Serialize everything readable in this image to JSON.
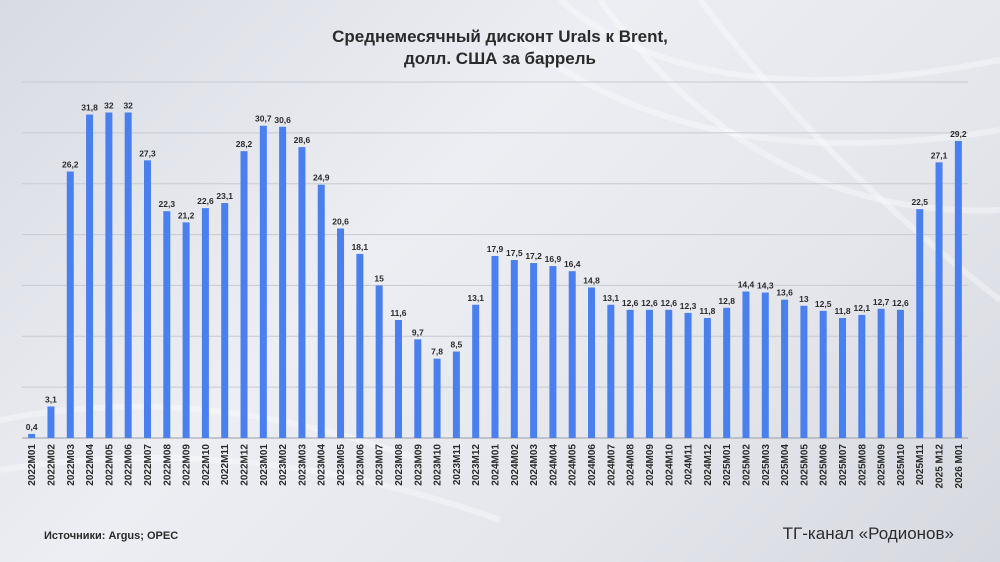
{
  "header": {
    "title_line1": "Среднемесячный дисконт Urals к Brent,",
    "title_line2": "долл. США за баррель"
  },
  "footer": {
    "source": "Источники: Argus; OPEC",
    "channel": "ТГ-канал «Родионов»"
  },
  "colors": {
    "bar": "#4a7ff0",
    "text": "#2b2b2b",
    "grid": "#c8cad2"
  },
  "chart_data": {
    "type": "bar",
    "title": "Среднемесячный дисконт Urals к Brent, долл. США за баррель",
    "xlabel": "",
    "ylabel": "",
    "ylim": [
      0,
      35
    ],
    "grid": true,
    "legend": "none",
    "categories": [
      "2022M01",
      "2022M02",
      "2022M03",
      "2022M04",
      "2022M05",
      "2022M06",
      "2022M07",
      "2022M08",
      "2022M09",
      "2022M10",
      "2022M11",
      "2022M12",
      "2023M01",
      "2023M02",
      "2023M03",
      "2023M04",
      "2023M05",
      "2023M06",
      "2023M07",
      "2023M08",
      "2023M09",
      "2023M10",
      "2023M11",
      "2023M12",
      "2024M01",
      "2024M02",
      "2024M03",
      "2024M04",
      "2024M05",
      "2024M06",
      "2024M07",
      "2024M08",
      "2024M09",
      "2024M10",
      "2024M11",
      "2024M12",
      "2025M01",
      "2025M02",
      "2025M03",
      "2025M04",
      "2025M05",
      "2025M06",
      "2025M07",
      "2025M08",
      "2025M09",
      "2025M10",
      "2025M11",
      "2025 M12",
      "2026 M01"
    ],
    "values": [
      0.4,
      3.1,
      26.2,
      31.8,
      32,
      32,
      27.3,
      22.3,
      21.2,
      22.6,
      23.1,
      28.2,
      30.7,
      30.6,
      28.6,
      24.9,
      20.6,
      18.1,
      15,
      11.6,
      9.7,
      7.8,
      8.5,
      13.1,
      17.9,
      17.5,
      17.2,
      16.9,
      16.4,
      14.8,
      13.1,
      12.6,
      12.6,
      12.6,
      12.3,
      11.8,
      12.8,
      14.4,
      14.3,
      13.6,
      13,
      12.5,
      11.8,
      12.1,
      12.7,
      12.6,
      22.5,
      27.1,
      29.2
    ],
    "labels": [
      "0,4",
      "3,1",
      "26,2",
      "31,8",
      "32",
      "32",
      "27,3",
      "22,3",
      "21,2",
      "22,6",
      "23,1",
      "28,2",
      "30,7",
      "30,6",
      "28,6",
      "24,9",
      "20,6",
      "18,1",
      "15",
      "11,6",
      "9,7",
      "7,8",
      "8,5",
      "13,1",
      "17,9",
      "17,5",
      "17,2",
      "16,9",
      "16,4",
      "14,8",
      "13,1",
      "12,6",
      "12,6",
      "12,6",
      "12,3",
      "11,8",
      "12,8",
      "14,4",
      "14,3",
      "13,6",
      "13",
      "12,5",
      "11,8",
      "12,1",
      "12,7",
      "12,6",
      "22,5",
      "27,1",
      "29,2"
    ]
  }
}
